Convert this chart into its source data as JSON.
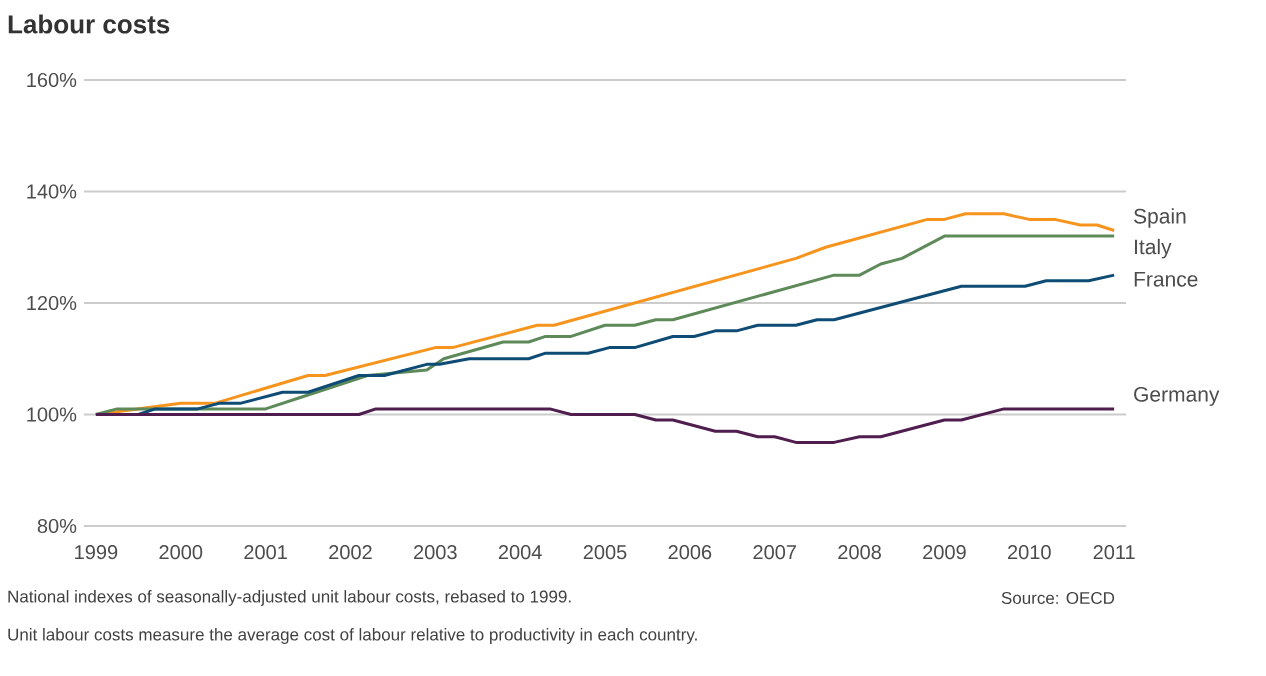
{
  "chart_data": {
    "type": "line",
    "title": "Labour costs",
    "annotations": [
      "National indexes of seasonally-adjusted unit labour costs, rebased to 1999.",
      "Unit labour costs measure the average cost of labour relative to productivity in each country.",
      "Source: OECD"
    ],
    "xlim": [
      1998.86,
      2011.14
    ],
    "xticks": [
      1999,
      2000,
      2001,
      2002,
      2003,
      2004,
      2005,
      2006,
      2007,
      2008,
      2009,
      2010,
      2011
    ],
    "ylim": [
      80,
      160
    ],
    "yticks": [
      {
        "value": 80,
        "label": "80%"
      },
      {
        "value": 100,
        "label": "100%"
      },
      {
        "value": 120,
        "label": "120%"
      },
      {
        "value": 140,
        "label": "140%"
      },
      {
        "value": 160,
        "label": "160%"
      }
    ],
    "grid": "y",
    "legend": false,
    "marker": "none",
    "line_style": "solid",
    "series": [
      {
        "name": "Spain",
        "color": "#f7941d",
        "x": [
          1999,
          2000,
          2000.4,
          2001.5,
          2001.7,
          2003.0,
          2003.2,
          2004.2,
          2004.4,
          2007.25,
          2007.6,
          2008.8,
          2009.0,
          2009.25,
          2009.7,
          2010.0,
          2010.3,
          2010.6,
          2010.8,
          2011.0
        ],
        "values": [
          100,
          102,
          102,
          107,
          107,
          112,
          112,
          116,
          116,
          128,
          130,
          135,
          135,
          136,
          136,
          135,
          135,
          134,
          134,
          133
        ]
      },
      {
        "name": "Italy",
        "color": "#5e8a5a",
        "x": [
          1999,
          1999.25,
          2000.5,
          2001.0,
          2001.4,
          2002.2,
          2002.9,
          2003.1,
          2003.8,
          2004.1,
          2004.3,
          2004.6,
          2005.0,
          2005.35,
          2005.6,
          2005.8,
          2007.7,
          2008.0,
          2008.25,
          2008.5,
          2009.0,
          2011.0
        ],
        "values": [
          100,
          101,
          101,
          101,
          103,
          107,
          108,
          110,
          113,
          113,
          114,
          114,
          116,
          116,
          117,
          117,
          125,
          125,
          127,
          128,
          132,
          132
        ]
      },
      {
        "name": "France",
        "color": "#0f4c75",
        "x": [
          1999,
          1999.5,
          1999.7,
          2000.2,
          2000.45,
          2000.7,
          2001.2,
          2001.5,
          2002.1,
          2002.4,
          2002.9,
          2003.05,
          2003.4,
          2004.1,
          2004.3,
          2004.8,
          2005.05,
          2005.35,
          2005.8,
          2006.05,
          2006.3,
          2006.55,
          2006.8,
          2007.25,
          2007.5,
          2007.7,
          2009.2,
          2009.95,
          2010.2,
          2010.7,
          2011.0
        ],
        "values": [
          100,
          100,
          101,
          101,
          102,
          102,
          104,
          104,
          107,
          107,
          109,
          109,
          110,
          110,
          111,
          111,
          112,
          112,
          114,
          114,
          115,
          115,
          116,
          116,
          117,
          117,
          123,
          123,
          124,
          124,
          125
        ]
      },
      {
        "name": "Germany",
        "color": "#4f1e4f",
        "x": [
          1999,
          2002.1,
          2002.3,
          2004.35,
          2004.6,
          2005.35,
          2005.6,
          2005.8,
          2006.3,
          2006.55,
          2006.8,
          2007.0,
          2007.25,
          2007.7,
          2008.0,
          2008.25,
          2009.0,
          2009.2,
          2009.7,
          2011.0
        ],
        "values": [
          100,
          100,
          101,
          101,
          100,
          100,
          99,
          99,
          97,
          97,
          96,
          96,
          95,
          95,
          96,
          96,
          99,
          99,
          101,
          101
        ]
      }
    ]
  }
}
